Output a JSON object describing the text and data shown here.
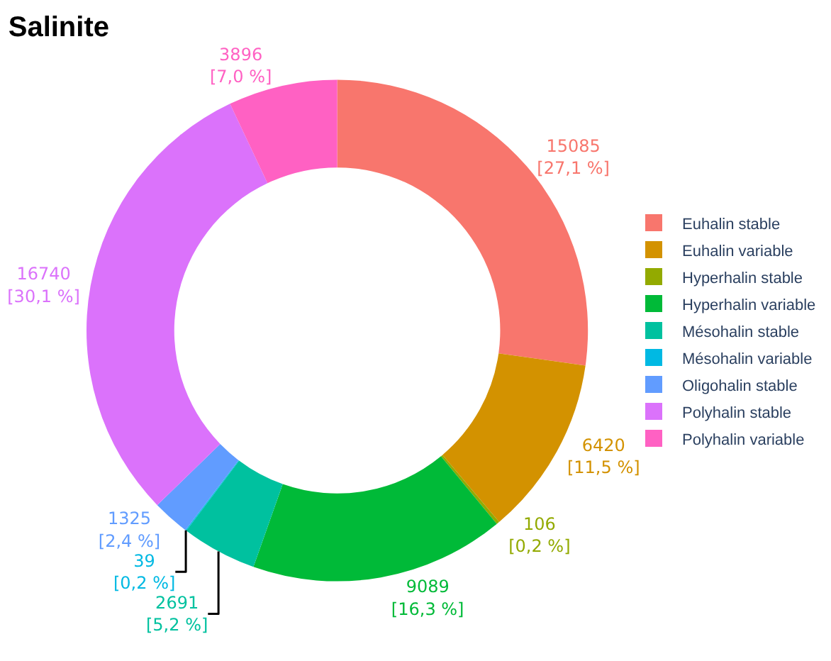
{
  "chart_data": {
    "type": "donut",
    "title": "Salinite",
    "categories": [
      "Euhalin stable",
      "Euhalin variable",
      "Hyperhalin stable",
      "Hyperhalin variable",
      "Mésohalin stable",
      "Mésohalin variable",
      "Oligohalin stable",
      "Polyhalin stable",
      "Polyhalin variable"
    ],
    "values": [
      15085,
      6420,
      106,
      9089,
      2691,
      39,
      1325,
      16740,
      3896
    ],
    "colors": [
      "#f8766d",
      "#d39200",
      "#93aa00",
      "#00ba38",
      "#00c19f",
      "#00b9e3",
      "#619cff",
      "#db72fb",
      "#ff61c3"
    ],
    "value_labels": [
      "15085\n[27,1 %]",
      "6420\n[11,5 %]",
      "106\n[0,2 %]",
      "9089\n[16,3 %]",
      "2691\n[5,2 %]",
      "39\n[0,2 %]",
      "1325\n[2,4 %]",
      "16740\n[30,1 %]",
      "3896\n[7,0 %]"
    ],
    "legend": "right"
  }
}
